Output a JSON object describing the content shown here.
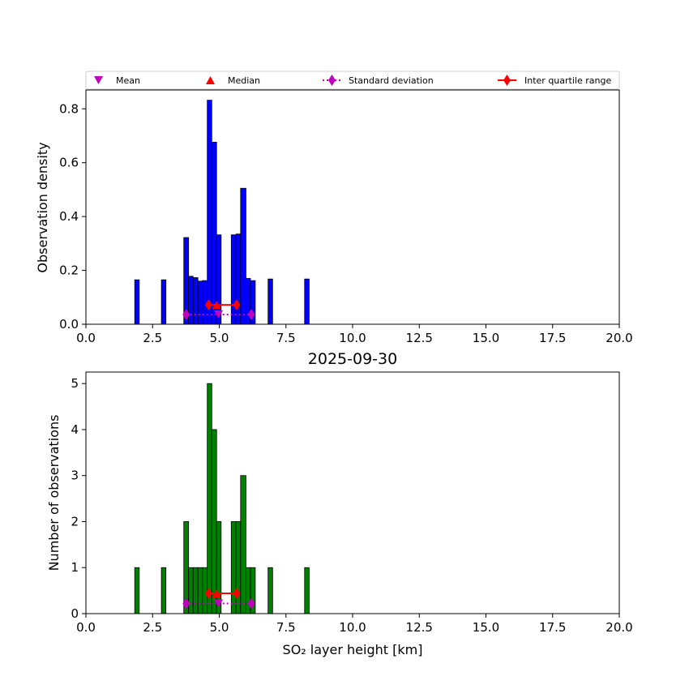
{
  "legend": {
    "items": [
      {
        "label": "Mean",
        "marker": "triangle-down",
        "color": "#bf00bf"
      },
      {
        "label": "Median",
        "marker": "triangle-up",
        "color": "#ff0000"
      },
      {
        "label": "Standard deviation",
        "marker": "diamond",
        "color": "#bf00bf",
        "line": "dotted"
      },
      {
        "label": "Inter quartile range",
        "marker": "diamond",
        "color": "#ff0000",
        "line": "solid"
      }
    ]
  },
  "chart_data": [
    {
      "type": "bar",
      "title": "",
      "xlabel": "",
      "ylabel": "Observation density",
      "xlim": [
        0,
        20
      ],
      "ylim": [
        0,
        0.87
      ],
      "xticks": [
        "0.0",
        "2.5",
        "5.0",
        "7.5",
        "10.0",
        "12.5",
        "15.0",
        "17.5",
        "20.0"
      ],
      "yticks": [
        "0.0",
        "0.2",
        "0.4",
        "0.6",
        "0.8"
      ],
      "ytick_values": [
        0,
        0.2,
        0.4,
        0.6,
        0.8
      ],
      "bar_color": "#0000ff",
      "bins": [
        {
          "x0": 1.83,
          "x1": 2.0,
          "value": 0.165
        },
        {
          "x0": 2.83,
          "x1": 3.0,
          "value": 0.165
        },
        {
          "x0": 3.67,
          "x1": 3.85,
          "value": 0.322
        },
        {
          "x0": 3.85,
          "x1": 4.02,
          "value": 0.178
        },
        {
          "x0": 4.02,
          "x1": 4.2,
          "value": 0.173
        },
        {
          "x0": 4.2,
          "x1": 4.37,
          "value": 0.16
        },
        {
          "x0": 4.37,
          "x1": 4.55,
          "value": 0.162
        },
        {
          "x0": 4.55,
          "x1": 4.72,
          "value": 0.832
        },
        {
          "x0": 4.72,
          "x1": 4.9,
          "value": 0.676
        },
        {
          "x0": 4.9,
          "x1": 5.07,
          "value": 0.332
        },
        {
          "x0": 5.45,
          "x1": 5.63,
          "value": 0.332
        },
        {
          "x0": 5.63,
          "x1": 5.8,
          "value": 0.335
        },
        {
          "x0": 5.8,
          "x1": 6.0,
          "value": 0.505
        },
        {
          "x0": 6.0,
          "x1": 6.17,
          "value": 0.17
        },
        {
          "x0": 6.17,
          "x1": 6.35,
          "value": 0.162
        },
        {
          "x0": 6.83,
          "x1": 7.0,
          "value": 0.168
        },
        {
          "x0": 8.2,
          "x1": 8.37,
          "value": 0.168
        }
      ],
      "stats": {
        "mean": {
          "x": 4.97,
          "y": 0.036
        },
        "std": {
          "x": [
            3.76,
            6.2
          ],
          "y": 0.036
        },
        "median": {
          "x": 4.9,
          "y": 0.072
        },
        "iqr": {
          "x": [
            4.6,
            5.65
          ],
          "y": 0.072
        }
      }
    },
    {
      "type": "bar",
      "title": "2025-09-30",
      "xlabel": "SO₂ layer height [km]",
      "ylabel": "Number of observations",
      "xlim": [
        0,
        20
      ],
      "ylim": [
        0,
        5.25
      ],
      "xticks": [
        "0.0",
        "2.5",
        "5.0",
        "7.5",
        "10.0",
        "12.5",
        "15.0",
        "17.5",
        "20.0"
      ],
      "yticks": [
        "0",
        "1",
        "2",
        "3",
        "4",
        "5"
      ],
      "ytick_values": [
        0,
        1,
        2,
        3,
        4,
        5
      ],
      "bar_color": "#008000",
      "bins": [
        {
          "x0": 1.83,
          "x1": 2.0,
          "value": 1
        },
        {
          "x0": 2.83,
          "x1": 3.0,
          "value": 1
        },
        {
          "x0": 3.67,
          "x1": 3.85,
          "value": 2
        },
        {
          "x0": 3.85,
          "x1": 4.02,
          "value": 1
        },
        {
          "x0": 4.02,
          "x1": 4.2,
          "value": 1
        },
        {
          "x0": 4.2,
          "x1": 4.37,
          "value": 1
        },
        {
          "x0": 4.37,
          "x1": 4.55,
          "value": 1
        },
        {
          "x0": 4.55,
          "x1": 4.72,
          "value": 5
        },
        {
          "x0": 4.72,
          "x1": 4.9,
          "value": 4
        },
        {
          "x0": 4.9,
          "x1": 5.07,
          "value": 2
        },
        {
          "x0": 5.45,
          "x1": 5.63,
          "value": 2
        },
        {
          "x0": 5.63,
          "x1": 5.8,
          "value": 2
        },
        {
          "x0": 5.8,
          "x1": 6.0,
          "value": 3
        },
        {
          "x0": 6.0,
          "x1": 6.17,
          "value": 1
        },
        {
          "x0": 6.17,
          "x1": 6.35,
          "value": 1
        },
        {
          "x0": 6.83,
          "x1": 7.0,
          "value": 1
        },
        {
          "x0": 8.2,
          "x1": 8.37,
          "value": 1
        }
      ],
      "stats": {
        "mean": {
          "x": 4.97,
          "y": 0.22
        },
        "std": {
          "x": [
            3.76,
            6.2
          ],
          "y": 0.22
        },
        "median": {
          "x": 4.9,
          "y": 0.44
        },
        "iqr": {
          "x": [
            4.6,
            5.65
          ],
          "y": 0.44
        }
      }
    }
  ]
}
